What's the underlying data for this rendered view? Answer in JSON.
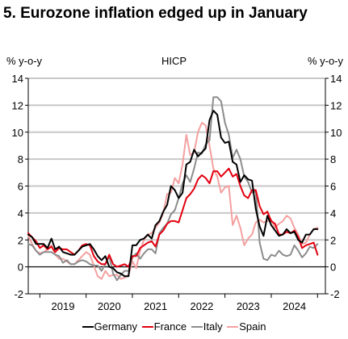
{
  "header": {
    "title": "5. Eurozone inflation edged up in January"
  },
  "chart_data": {
    "type": "line",
    "title": "5. Eurozone inflation edged up in January",
    "subtitle": "HICP",
    "ylabel_left": "% y-o-y",
    "ylabel_right": "% y-o-y",
    "ylim": [
      -2,
      14
    ],
    "yticks": [
      -2,
      0,
      2,
      4,
      6,
      8,
      10,
      12,
      14
    ],
    "xticks": [
      "2019",
      "2020",
      "2021",
      "2022",
      "2023",
      "2024"
    ],
    "x_start": "2018-10",
    "x_end": "2025-01",
    "grid": true,
    "legend_position": "bottom",
    "colors": {
      "Germany": "#000000",
      "France": "#e3000f",
      "Italy": "#8c8c8c",
      "Spain": "#f4a0a0"
    },
    "series": [
      {
        "name": "Germany",
        "x": [
          "2018-10",
          "2018-11",
          "2018-12",
          "2019-01",
          "2019-02",
          "2019-03",
          "2019-04",
          "2019-05",
          "2019-06",
          "2019-07",
          "2019-08",
          "2019-09",
          "2019-10",
          "2019-11",
          "2019-12",
          "2020-01",
          "2020-02",
          "2020-03",
          "2020-04",
          "2020-05",
          "2020-06",
          "2020-07",
          "2020-08",
          "2020-09",
          "2020-10",
          "2020-11",
          "2020-12",
          "2021-01",
          "2021-02",
          "2021-03",
          "2021-04",
          "2021-05",
          "2021-06",
          "2021-07",
          "2021-08",
          "2021-09",
          "2021-10",
          "2021-11",
          "2021-12",
          "2022-01",
          "2022-02",
          "2022-03",
          "2022-04",
          "2022-05",
          "2022-06",
          "2022-07",
          "2022-08",
          "2022-09",
          "2022-10",
          "2022-11",
          "2022-12",
          "2023-01",
          "2023-02",
          "2023-03",
          "2023-04",
          "2023-05",
          "2023-06",
          "2023-07",
          "2023-08",
          "2023-09",
          "2023-10",
          "2023-11",
          "2023-12",
          "2024-01",
          "2024-02",
          "2024-03",
          "2024-04",
          "2024-05",
          "2024-06",
          "2024-07",
          "2024-08",
          "2024-09",
          "2024-10",
          "2024-11",
          "2024-12",
          "2025-01"
        ],
        "values": [
          2.4,
          2.2,
          1.7,
          1.7,
          1.7,
          1.4,
          2.1,
          1.3,
          1.5,
          1.1,
          1.0,
          0.9,
          0.9,
          1.2,
          1.5,
          1.6,
          1.7,
          1.3,
          0.8,
          0.5,
          0.8,
          0.0,
          -0.1,
          -0.4,
          -0.5,
          -0.7,
          -0.7,
          1.6,
          1.6,
          2.0,
          2.1,
          2.4,
          2.1,
          3.1,
          3.4,
          4.1,
          4.6,
          6.0,
          5.7,
          5.1,
          5.5,
          7.6,
          7.8,
          8.7,
          8.2,
          8.5,
          8.8,
          10.9,
          11.6,
          11.3,
          9.6,
          9.2,
          9.3,
          7.8,
          7.6,
          6.3,
          6.8,
          6.5,
          6.4,
          4.3,
          3.0,
          2.3,
          3.8,
          3.1,
          2.7,
          2.3,
          2.4,
          2.8,
          2.5,
          2.6,
          2.0,
          1.8,
          2.4,
          2.4,
          2.8,
          2.8
        ]
      },
      {
        "name": "France",
        "x": [
          "2018-10",
          "2018-11",
          "2018-12",
          "2019-01",
          "2019-02",
          "2019-03",
          "2019-04",
          "2019-05",
          "2019-06",
          "2019-07",
          "2019-08",
          "2019-09",
          "2019-10",
          "2019-11",
          "2019-12",
          "2020-01",
          "2020-02",
          "2020-03",
          "2020-04",
          "2020-05",
          "2020-06",
          "2020-07",
          "2020-08",
          "2020-09",
          "2020-10",
          "2020-11",
          "2020-12",
          "2021-01",
          "2021-02",
          "2021-03",
          "2021-04",
          "2021-05",
          "2021-06",
          "2021-07",
          "2021-08",
          "2021-09",
          "2021-10",
          "2021-11",
          "2021-12",
          "2022-01",
          "2022-02",
          "2022-03",
          "2022-04",
          "2022-05",
          "2022-06",
          "2022-07",
          "2022-08",
          "2022-09",
          "2022-10",
          "2022-11",
          "2022-12",
          "2023-01",
          "2023-02",
          "2023-03",
          "2023-04",
          "2023-05",
          "2023-06",
          "2023-07",
          "2023-08",
          "2023-09",
          "2023-10",
          "2023-11",
          "2023-12",
          "2024-01",
          "2024-02",
          "2024-03",
          "2024-04",
          "2024-05",
          "2024-06",
          "2024-07",
          "2024-08",
          "2024-09",
          "2024-10",
          "2024-11",
          "2024-12",
          "2025-01"
        ],
        "values": [
          2.5,
          2.2,
          1.9,
          1.4,
          1.6,
          1.3,
          1.5,
          1.1,
          1.4,
          1.3,
          1.3,
          1.1,
          0.9,
          1.2,
          1.6,
          1.7,
          1.6,
          0.8,
          0.4,
          0.2,
          0.2,
          0.9,
          0.2,
          0.0,
          0.1,
          0.2,
          0.0,
          0.8,
          0.8,
          1.4,
          1.6,
          1.8,
          1.9,
          1.5,
          2.4,
          2.7,
          3.2,
          3.4,
          3.4,
          3.3,
          4.2,
          5.1,
          5.4,
          5.8,
          6.5,
          6.8,
          6.6,
          6.2,
          7.1,
          7.1,
          6.7,
          7.0,
          7.3,
          6.7,
          6.9,
          6.0,
          5.3,
          5.1,
          5.7,
          5.7,
          4.5,
          3.9,
          4.1,
          3.4,
          3.2,
          2.4,
          2.4,
          2.6,
          2.5,
          2.7,
          2.2,
          1.4,
          1.6,
          1.7,
          1.8,
          0.9
        ]
      },
      {
        "name": "Italy",
        "x": [
          "2018-10",
          "2018-11",
          "2018-12",
          "2019-01",
          "2019-02",
          "2019-03",
          "2019-04",
          "2019-05",
          "2019-06",
          "2019-07",
          "2019-08",
          "2019-09",
          "2019-10",
          "2019-11",
          "2019-12",
          "2020-01",
          "2020-02",
          "2020-03",
          "2020-04",
          "2020-05",
          "2020-06",
          "2020-07",
          "2020-08",
          "2020-09",
          "2020-10",
          "2020-11",
          "2020-12",
          "2021-01",
          "2021-02",
          "2021-03",
          "2021-04",
          "2021-05",
          "2021-06",
          "2021-07",
          "2021-08",
          "2021-09",
          "2021-10",
          "2021-11",
          "2021-12",
          "2022-01",
          "2022-02",
          "2022-03",
          "2022-04",
          "2022-05",
          "2022-06",
          "2022-07",
          "2022-08",
          "2022-09",
          "2022-10",
          "2022-11",
          "2022-12",
          "2023-01",
          "2023-02",
          "2023-03",
          "2023-04",
          "2023-05",
          "2023-06",
          "2023-07",
          "2023-08",
          "2023-09",
          "2023-10",
          "2023-11",
          "2023-12",
          "2024-01",
          "2024-02",
          "2024-03",
          "2024-04",
          "2024-05",
          "2024-06",
          "2024-07",
          "2024-08",
          "2024-09",
          "2024-10",
          "2024-11",
          "2024-12",
          "2025-01"
        ],
        "values": [
          1.7,
          1.6,
          1.2,
          0.9,
          1.1,
          1.1,
          1.1,
          0.9,
          0.8,
          0.3,
          0.5,
          0.2,
          0.2,
          0.4,
          0.5,
          0.4,
          0.2,
          0.1,
          0.1,
          -0.3,
          0.2,
          0.8,
          -0.5,
          -1.0,
          -0.6,
          -0.3,
          -0.3,
          0.7,
          1.0,
          0.6,
          1.0,
          1.3,
          1.3,
          1.0,
          2.5,
          2.9,
          3.2,
          3.9,
          4.2,
          5.1,
          6.2,
          6.8,
          6.3,
          7.3,
          8.5,
          8.4,
          9.1,
          9.4,
          12.6,
          12.6,
          12.3,
          10.7,
          9.8,
          8.1,
          8.7,
          8.0,
          6.7,
          6.3,
          5.5,
          5.6,
          1.8,
          0.6,
          0.5,
          0.9,
          0.8,
          1.2,
          0.9,
          0.8,
          0.9,
          1.6,
          1.2,
          0.7,
          1.0,
          1.5,
          1.4,
          1.7
        ]
      },
      {
        "name": "Spain",
        "x": [
          "2018-10",
          "2018-11",
          "2018-12",
          "2019-01",
          "2019-02",
          "2019-03",
          "2019-04",
          "2019-05",
          "2019-06",
          "2019-07",
          "2019-08",
          "2019-09",
          "2019-10",
          "2019-11",
          "2019-12",
          "2020-01",
          "2020-02",
          "2020-03",
          "2020-04",
          "2020-05",
          "2020-06",
          "2020-07",
          "2020-08",
          "2020-09",
          "2020-10",
          "2020-11",
          "2020-12",
          "2021-01",
          "2021-02",
          "2021-03",
          "2021-04",
          "2021-05",
          "2021-06",
          "2021-07",
          "2021-08",
          "2021-09",
          "2021-10",
          "2021-11",
          "2021-12",
          "2022-01",
          "2022-02",
          "2022-03",
          "2022-04",
          "2022-05",
          "2022-06",
          "2022-07",
          "2022-08",
          "2022-09",
          "2022-10",
          "2022-11",
          "2022-12",
          "2023-01",
          "2023-02",
          "2023-03",
          "2023-04",
          "2023-05",
          "2023-06",
          "2023-07",
          "2023-08",
          "2023-09",
          "2023-10",
          "2023-11",
          "2023-12",
          "2024-01",
          "2024-02",
          "2024-03",
          "2024-04",
          "2024-05",
          "2024-06",
          "2024-07",
          "2024-08",
          "2024-09",
          "2024-10",
          "2024-11",
          "2024-12",
          "2025-01"
        ],
        "values": [
          2.3,
          1.7,
          1.2,
          1.0,
          1.1,
          1.3,
          1.6,
          0.9,
          0.6,
          0.6,
          0.4,
          0.2,
          0.2,
          0.5,
          0.8,
          1.1,
          0.9,
          0.1,
          -0.7,
          -0.9,
          -0.3,
          -0.7,
          -0.6,
          -0.6,
          -0.9,
          -0.8,
          -0.6,
          0.4,
          -0.1,
          1.2,
          2.0,
          2.4,
          2.5,
          2.9,
          3.3,
          4.0,
          5.4,
          5.5,
          6.6,
          6.2,
          7.6,
          9.8,
          8.3,
          8.5,
          10.0,
          10.7,
          10.5,
          9.0,
          7.3,
          6.7,
          5.5,
          5.9,
          6.0,
          3.1,
          3.8,
          2.9,
          1.6,
          2.1,
          2.4,
          3.3,
          3.5,
          3.3,
          3.4,
          3.5,
          2.9,
          3.2,
          3.4,
          3.8,
          3.6,
          2.9,
          2.4,
          1.7,
          1.8,
          2.4,
          2.8,
          2.9
        ]
      }
    ]
  }
}
